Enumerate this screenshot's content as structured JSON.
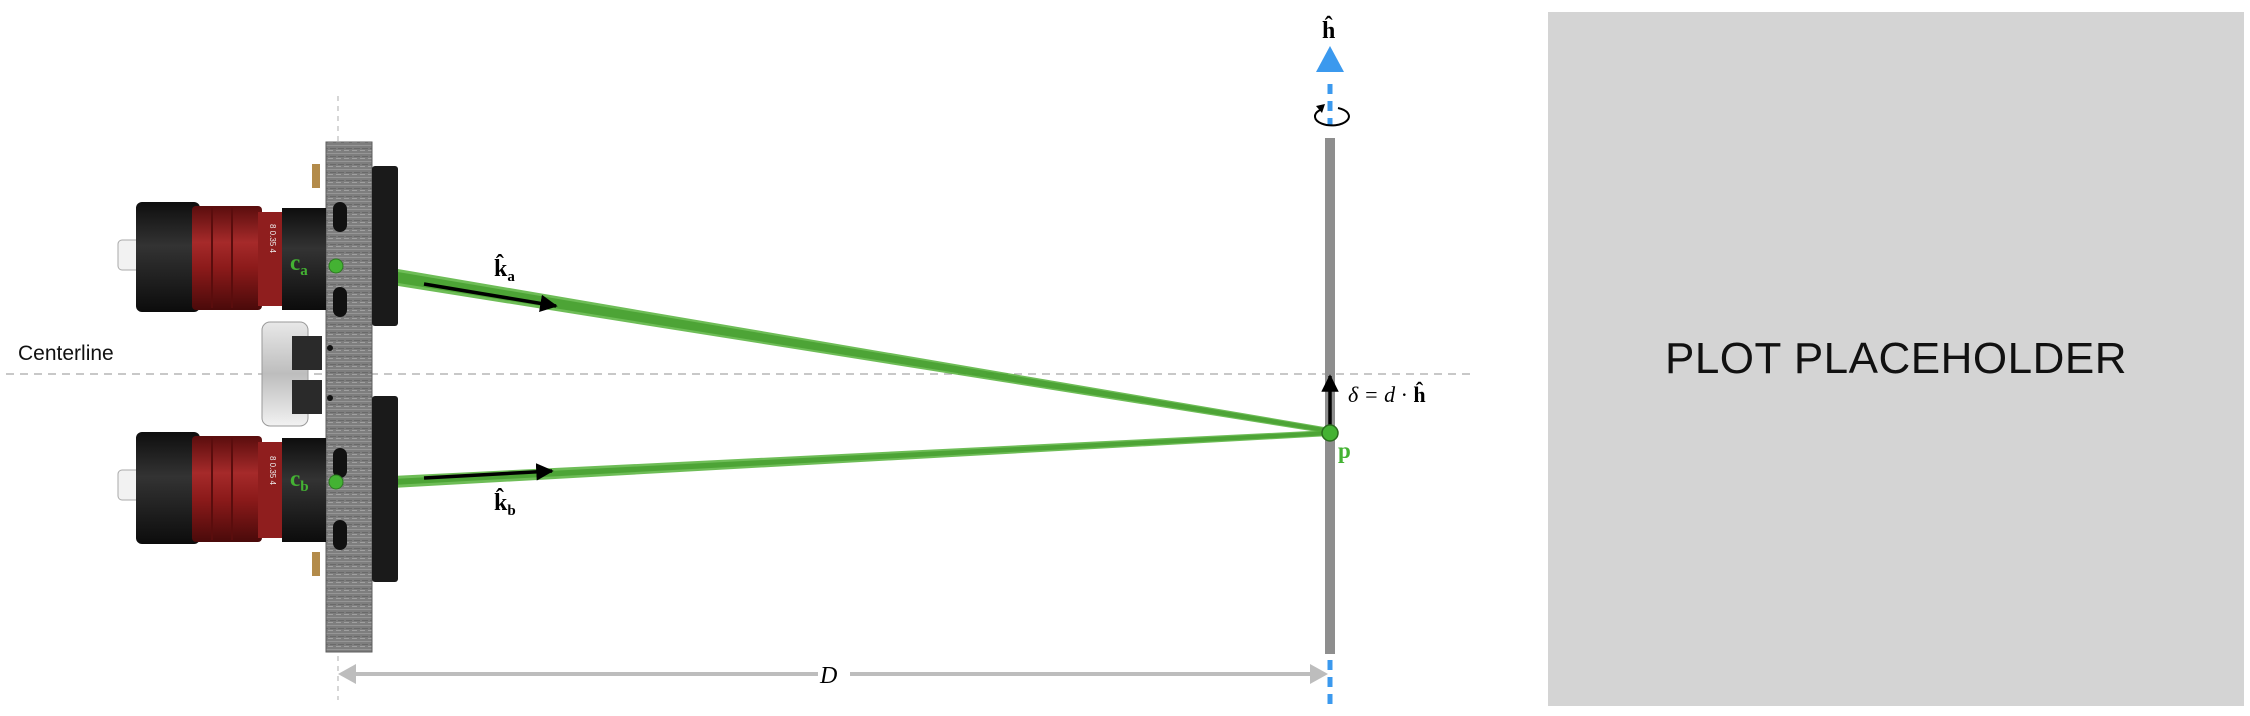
{
  "labels": {
    "centerline": "Centerline",
    "h_hat": "ĥ",
    "ca_main": "c",
    "ca_sub": "a",
    "cb_main": "c",
    "cb_sub": "b",
    "ka_main": "k̂",
    "ka_sub": "a",
    "kb_main": "k̂",
    "kb_sub": "b",
    "delta_pre": "δ = ",
    "delta_d": "d",
    "delta_dot": " · ",
    "delta_h": "ĥ",
    "p": "p",
    "distance": "D"
  },
  "placeholder": {
    "text": "PLOT PLACEHOLDER"
  },
  "colors": {
    "laser_green": "#55b23a",
    "point_green": "#44b233",
    "axis_blue": "#3b99ee",
    "lens_red": "#8b1a1a",
    "body_black": "#1b1b1b",
    "plate_gray": "#8a8a8a",
    "screen_gray": "#8e8e8e",
    "dimension_gray": "#bdbdbd",
    "placeholder_bg": "#d4d4d4"
  },
  "icons": [
    "rotation-arrow-icon",
    "blue-triangle-icon",
    "arrow-head-icon"
  ]
}
